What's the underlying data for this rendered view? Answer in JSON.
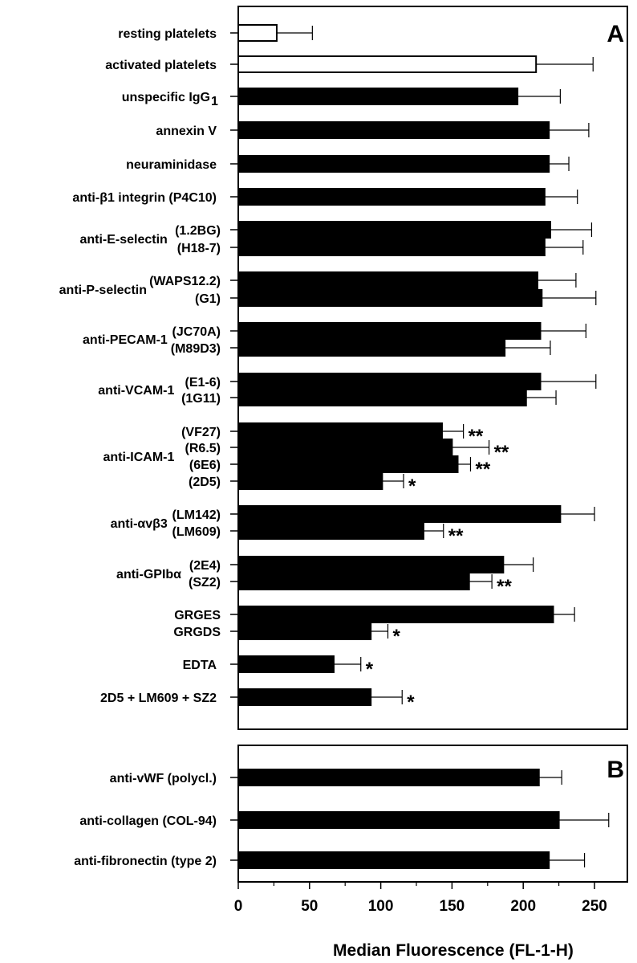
{
  "chart_data": {
    "type": "bar",
    "orientation": "horizontal",
    "xlabel": "Median Fluorescence (FL-1-H)",
    "xlim": [
      0,
      270
    ],
    "xticks": [
      0,
      50,
      100,
      150,
      200,
      250
    ],
    "panels": [
      {
        "label": "A",
        "groups": [
          {
            "label": "resting platelets",
            "bars": [
              {
                "sublabel": "",
                "value": 27,
                "error": 25,
                "fill": "white",
                "sig": ""
              }
            ]
          },
          {
            "label": "activated platelets",
            "bars": [
              {
                "sublabel": "",
                "value": 209,
                "error": 40,
                "fill": "white",
                "sig": ""
              }
            ]
          },
          {
            "label": "unspecific IgG",
            "label_sub": "1",
            "bars": [
              {
                "sublabel": "",
                "value": 196,
                "error": 30,
                "fill": "black",
                "sig": ""
              }
            ]
          },
          {
            "label": "annexin V",
            "bars": [
              {
                "sublabel": "",
                "value": 218,
                "error": 28,
                "fill": "black",
                "sig": ""
              }
            ]
          },
          {
            "label": "neuraminidase",
            "bars": [
              {
                "sublabel": "",
                "value": 218,
                "error": 14,
                "fill": "black",
                "sig": ""
              }
            ]
          },
          {
            "label": "anti-β1 integrin (P4C10)",
            "bars": [
              {
                "sublabel": "",
                "value": 215,
                "error": 23,
                "fill": "black",
                "sig": ""
              }
            ]
          },
          {
            "label": "anti-E-selectin",
            "bars": [
              {
                "sublabel": "(1.2BG)",
                "value": 219,
                "error": 29,
                "fill": "black",
                "sig": ""
              },
              {
                "sublabel": "(H18-7)",
                "value": 215,
                "error": 27,
                "fill": "black",
                "sig": ""
              }
            ]
          },
          {
            "label": "anti-P-selectin",
            "bars": [
              {
                "sublabel": "(WAPS12.2)",
                "value": 210,
                "error": 27,
                "fill": "black",
                "sig": ""
              },
              {
                "sublabel": "(G1)",
                "value": 213,
                "error": 38,
                "fill": "black",
                "sig": ""
              }
            ]
          },
          {
            "label": "anti-PECAM-1",
            "bars": [
              {
                "sublabel": "(JC70A)",
                "value": 212,
                "error": 32,
                "fill": "black",
                "sig": ""
              },
              {
                "sublabel": "(M89D3)",
                "value": 187,
                "error": 32,
                "fill": "black",
                "sig": ""
              }
            ]
          },
          {
            "label": "anti-VCAM-1",
            "bars": [
              {
                "sublabel": "(E1-6)",
                "value": 212,
                "error": 39,
                "fill": "black",
                "sig": ""
              },
              {
                "sublabel": "(1G11)",
                "value": 202,
                "error": 21,
                "fill": "black",
                "sig": ""
              }
            ]
          },
          {
            "label": "anti-ICAM-1",
            "bars": [
              {
                "sublabel": "(VF27)",
                "value": 143,
                "error": 15,
                "fill": "black",
                "sig": "**"
              },
              {
                "sublabel": "(R6.5)",
                "value": 150,
                "error": 26,
                "fill": "black",
                "sig": "**"
              },
              {
                "sublabel": "(6E6)",
                "value": 154,
                "error": 9,
                "fill": "black",
                "sig": "**"
              },
              {
                "sublabel": "(2D5)",
                "value": 101,
                "error": 15,
                "fill": "black",
                "sig": "*"
              }
            ]
          },
          {
            "label": "anti-αvβ3",
            "bars": [
              {
                "sublabel": "(LM142)",
                "value": 226,
                "error": 24,
                "fill": "black",
                "sig": ""
              },
              {
                "sublabel": "(LM609)",
                "value": 130,
                "error": 14,
                "fill": "black",
                "sig": "**"
              }
            ]
          },
          {
            "label": "anti-GPIbα",
            "bars": [
              {
                "sublabel": "(2E4)",
                "value": 186,
                "error": 21,
                "fill": "black",
                "sig": ""
              },
              {
                "sublabel": "(SZ2)",
                "value": 162,
                "error": 16,
                "fill": "black",
                "sig": "**"
              }
            ]
          },
          {
            "label": "",
            "bars": [
              {
                "sublabel": "GRGES",
                "value": 221,
                "error": 15,
                "fill": "black",
                "sig": ""
              },
              {
                "sublabel": "GRGDS",
                "value": 93,
                "error": 12,
                "fill": "black",
                "sig": "*"
              }
            ]
          },
          {
            "label": "EDTA",
            "bars": [
              {
                "sublabel": "",
                "value": 67,
                "error": 19,
                "fill": "black",
                "sig": "*"
              }
            ]
          },
          {
            "label": "2D5 + LM609 + SZ2",
            "bars": [
              {
                "sublabel": "",
                "value": 93,
                "error": 22,
                "fill": "black",
                "sig": "*"
              }
            ]
          }
        ]
      },
      {
        "label": "B",
        "groups": [
          {
            "label": "anti-vWF (polycl.)",
            "bars": [
              {
                "sublabel": "",
                "value": 211,
                "error": 16,
                "fill": "black",
                "sig": ""
              }
            ]
          },
          {
            "label": "anti-collagen (COL-94)",
            "bars": [
              {
                "sublabel": "",
                "value": 225,
                "error": 35,
                "fill": "black",
                "sig": ""
              }
            ]
          },
          {
            "label": "anti-fibronectin (type 2)",
            "bars": [
              {
                "sublabel": "",
                "value": 218,
                "error": 25,
                "fill": "black",
                "sig": ""
              }
            ]
          }
        ]
      }
    ]
  }
}
